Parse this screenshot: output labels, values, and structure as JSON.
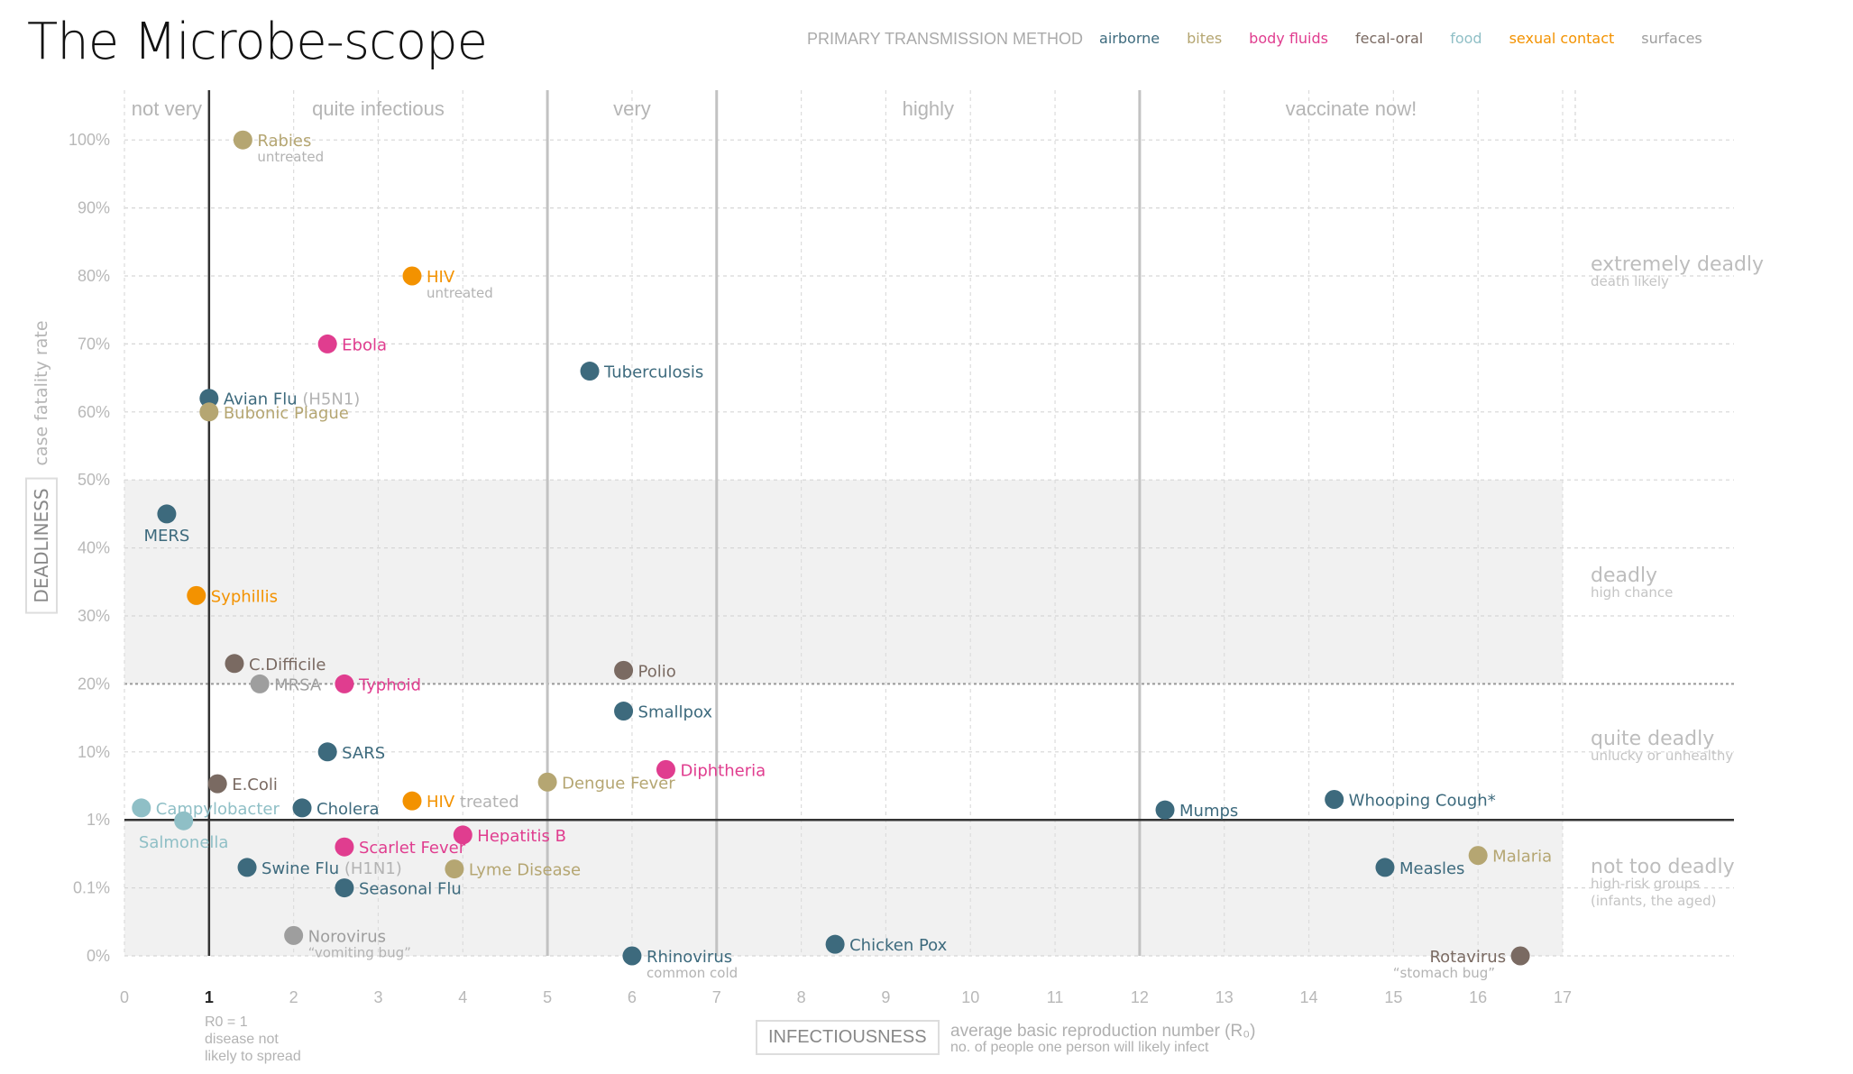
{
  "title": "The Microbe-scope",
  "legend": {
    "title": "PRIMARY TRANSMISSION METHOD",
    "items": [
      {
        "key": "airborne",
        "label": "airborne",
        "color": "#3d6a7d"
      },
      {
        "key": "bites",
        "label": "bites",
        "color": "#b5a672"
      },
      {
        "key": "body_fluids",
        "label": "body fluids",
        "color": "#e03d8f"
      },
      {
        "key": "fecal_oral",
        "label": "fecal-oral",
        "color": "#7a6a62"
      },
      {
        "key": "food",
        "label": "food",
        "color": "#8fbfc6"
      },
      {
        "key": "sexual_contact",
        "label": "sexual contact",
        "color": "#f39200"
      },
      {
        "key": "surfaces",
        "label": "surfaces",
        "color": "#9e9e9e"
      }
    ]
  },
  "infectiousness_bands": [
    {
      "label": "not very",
      "from": 0,
      "to": 1
    },
    {
      "label": "quite infectious",
      "from": 1,
      "to": 5
    },
    {
      "label": "very",
      "from": 5,
      "to": 7
    },
    {
      "label": "highly",
      "from": 7,
      "to": 12
    },
    {
      "label": "vaccinate now!",
      "from": 12,
      "to": 17
    }
  ],
  "deadliness_bands": [
    {
      "label": "extremely deadly",
      "sub": [
        "death likely"
      ]
    },
    {
      "label": "deadly",
      "sub": [
        "high chance"
      ]
    },
    {
      "label": "quite deadly",
      "sub": [
        "unlucky or unhealthy"
      ]
    },
    {
      "label": "not too deadly",
      "sub": [
        "high-risk groups",
        "(infants, the aged)"
      ]
    }
  ],
  "axes": {
    "y_title": "case fatality rate",
    "y_box": "DEADLINESS",
    "x_box": "INFECTIOUSNESS",
    "x_desc": "average basic reproduction number (R₀)",
    "x_desc_sub": "no. of people one person will likely infect",
    "r0_note": [
      "R0 = 1",
      "disease not",
      "likely to spread"
    ]
  },
  "chart_data": {
    "type": "scatter",
    "title": "The Microbe-scope",
    "xlabel": "INFECTIOUSNESS — average basic reproduction number (R0)",
    "ylabel": "DEADLINESS — case fatality rate",
    "xlim": [
      0,
      17
    ],
    "x_ticks": [
      "0",
      "1",
      "2",
      "3",
      "4",
      "5",
      "6",
      "7",
      "8",
      "9",
      "10",
      "11",
      "12",
      "13",
      "14",
      "15",
      "16",
      "17"
    ],
    "y_scale": "piecewise: 0%–0.1%–1%–10% equal bands, then linear 10%–100%",
    "y_ticks": [
      "0%",
      "0.1%",
      "1%",
      "10%",
      "20%",
      "30%",
      "40%",
      "50%",
      "60%",
      "70%",
      "80%",
      "90%",
      "100%"
    ],
    "grid": true,
    "legend_position": "top-right",
    "points": [
      {
        "name": "Rabies",
        "sub": "untreated",
        "x": 1.4,
        "y": 100,
        "method": "bites"
      },
      {
        "name": "HIV",
        "sub": "untreated",
        "x": 3.4,
        "y": 80,
        "method": "sexual_contact"
      },
      {
        "name": "Ebola",
        "sub": "",
        "x": 2.4,
        "y": 70,
        "method": "body_fluids"
      },
      {
        "name": "Tuberculosis",
        "sub": "",
        "x": 5.5,
        "y": 66,
        "method": "airborne"
      },
      {
        "name": "Avian Flu",
        "sub": "(H5N1)",
        "x": 1.0,
        "y": 62,
        "method": "airborne",
        "sub_inline": true
      },
      {
        "name": "Bubonic Plague",
        "sub": "",
        "x": 1.0,
        "y": 60,
        "method": "bites"
      },
      {
        "name": "MERS",
        "sub": "",
        "x": 0.5,
        "y": 45,
        "method": "airborne",
        "label_below": true
      },
      {
        "name": "Syphillis",
        "sub": "",
        "x": 0.85,
        "y": 33,
        "method": "sexual_contact"
      },
      {
        "name": "C.Difficile",
        "sub": "",
        "x": 1.3,
        "y": 23,
        "method": "fecal_oral"
      },
      {
        "name": "MRSA",
        "sub": "",
        "x": 1.6,
        "y": 20,
        "method": "surfaces"
      },
      {
        "name": "Typhoid",
        "sub": "",
        "x": 2.6,
        "y": 20,
        "method": "body_fluids"
      },
      {
        "name": "Polio",
        "sub": "",
        "x": 5.9,
        "y": 22,
        "method": "fecal_oral"
      },
      {
        "name": "Smallpox",
        "sub": "",
        "x": 5.9,
        "y": 16,
        "method": "airborne"
      },
      {
        "name": "SARS",
        "sub": "",
        "x": 2.4,
        "y": 10,
        "method": "airborne"
      },
      {
        "name": "Diphtheria",
        "sub": "",
        "x": 6.4,
        "y": 5.5,
        "method": "body_fluids"
      },
      {
        "name": "E.Coli",
        "sub": "",
        "x": 1.1,
        "y": 3.4,
        "method": "fecal_oral"
      },
      {
        "name": "Dengue Fever",
        "sub": "",
        "x": 5.0,
        "y": 3.6,
        "method": "bites"
      },
      {
        "name": "HIV",
        "sub": "treated",
        "x": 3.4,
        "y": 1.9,
        "method": "sexual_contact",
        "sub_inline": true
      },
      {
        "name": "Whooping Cough*",
        "sub": "",
        "x": 14.3,
        "y": 2.0,
        "method": "airborne"
      },
      {
        "name": "Campylobacter",
        "sub": "",
        "x": 0.2,
        "y": 1.5,
        "method": "food"
      },
      {
        "name": "Cholera",
        "sub": "",
        "x": 2.1,
        "y": 1.5,
        "method": "airborne"
      },
      {
        "name": "Mumps",
        "sub": "",
        "x": 12.3,
        "y": 1.4,
        "method": "airborne"
      },
      {
        "name": "Salmonella",
        "sub": "",
        "x": 0.7,
        "y": 0.97,
        "method": "food",
        "label_below": true
      },
      {
        "name": "Hepatitis B",
        "sub": "",
        "x": 4.0,
        "y": 0.6,
        "method": "body_fluids"
      },
      {
        "name": "Malaria",
        "sub": "",
        "x": 16.0,
        "y": 0.3,
        "method": "bites"
      },
      {
        "name": "Scarlet Fever",
        "sub": "",
        "x": 2.6,
        "y": 0.4,
        "method": "body_fluids"
      },
      {
        "name": "Swine Flu",
        "sub": "(H1N1)",
        "x": 1.45,
        "y": 0.2,
        "method": "airborne",
        "sub_inline": true
      },
      {
        "name": "Measles",
        "sub": "",
        "x": 14.9,
        "y": 0.2,
        "method": "airborne"
      },
      {
        "name": "Lyme Disease",
        "sub": "",
        "x": 3.9,
        "y": 0.19,
        "method": "bites"
      },
      {
        "name": "Seasonal Flu",
        "sub": "",
        "x": 2.6,
        "y": 0.1,
        "method": "airborne"
      },
      {
        "name": "Norovirus",
        "sub": "“vomiting bug”",
        "x": 2.0,
        "y": 0.03,
        "method": "surfaces"
      },
      {
        "name": "Chicken Pox",
        "sub": "",
        "x": 8.4,
        "y": 0.017,
        "method": "airborne"
      },
      {
        "name": "Rhinovirus",
        "sub": "common cold",
        "x": 6.0,
        "y": 0.0,
        "method": "airborne"
      },
      {
        "name": "Rotavirus",
        "sub": "“stomach bug”",
        "x": 16.5,
        "y": 0.0,
        "method": "fecal_oral",
        "label_left": true
      }
    ]
  }
}
